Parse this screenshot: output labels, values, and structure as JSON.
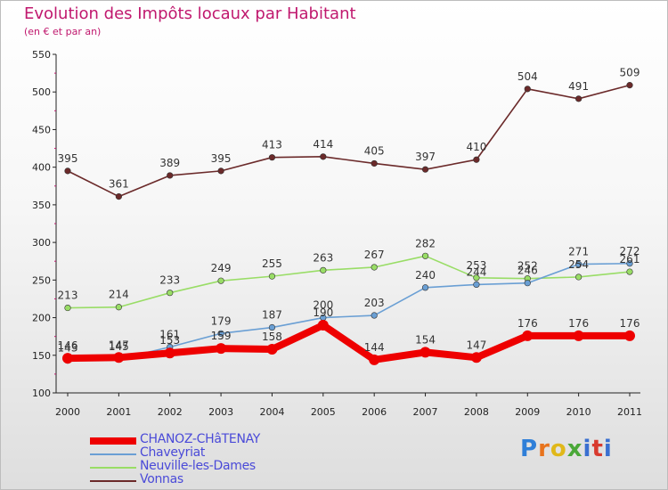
{
  "header": {
    "title": "Evolution des Impôts locaux par Habitant",
    "subtitle": "(en € et par an)"
  },
  "logo": {
    "text": "Proxiti"
  },
  "colors": {
    "CHANOZ-CHâTENAY": "#ee0000",
    "Chaveyriat": "#6a9fd4",
    "Neuville-les-Dames": "#99dd66",
    "Vonnas": "#6b2a2a"
  },
  "chart_data": {
    "type": "line",
    "title": "Evolution des Impôts locaux par Habitant",
    "subtitle": "(en € et par an)",
    "xlabel": "",
    "ylabel": "",
    "x": [
      2000,
      2001,
      2002,
      2003,
      2004,
      2005,
      2006,
      2007,
      2008,
      2009,
      2010,
      2011
    ],
    "ylim": [
      100,
      550
    ],
    "yticks": [
      100,
      150,
      200,
      250,
      300,
      350,
      400,
      450,
      500,
      550
    ],
    "grid": false,
    "legend_position": "bottom-left",
    "series": [
      {
        "name": "CHANOZ-CHâTENAY",
        "values": [
          146,
          147,
          153,
          159,
          158,
          190,
          144,
          154,
          147,
          176,
          176,
          176
        ]
      },
      {
        "name": "Chaveyriat",
        "values": [
          143,
          145,
          161,
          179,
          187,
          200,
          203,
          240,
          244,
          246,
          271,
          272
        ]
      },
      {
        "name": "Neuville-les-Dames",
        "values": [
          213,
          214,
          233,
          249,
          255,
          263,
          267,
          282,
          253,
          252,
          254,
          261
        ]
      },
      {
        "name": "Vonnas",
        "values": [
          395,
          361,
          389,
          395,
          413,
          414,
          405,
          397,
          410,
          504,
          491,
          509
        ]
      }
    ]
  }
}
